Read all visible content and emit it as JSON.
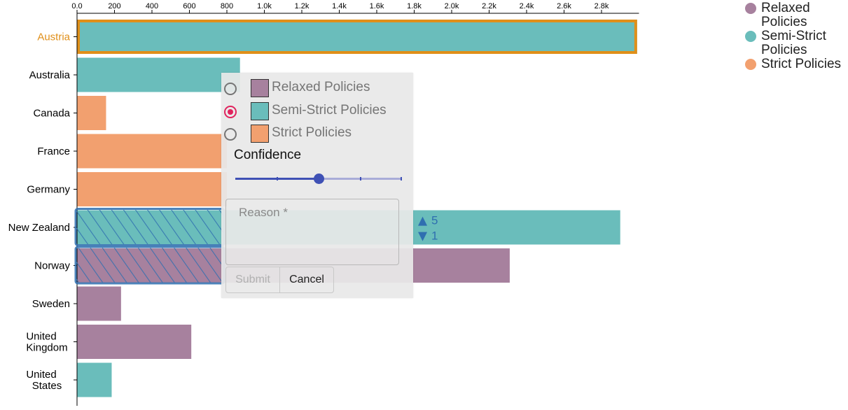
{
  "chart_data": {
    "type": "bar",
    "orientation": "horizontal",
    "categories": [
      "Austria",
      "Australia",
      "Canada",
      "France",
      "Germany",
      "New Zealand",
      "Norway",
      "Sweden",
      "United Kingdom",
      "United States"
    ],
    "values": [
      2990,
      870,
      155,
      800,
      800,
      2900,
      2310,
      235,
      610,
      185
    ],
    "classes": [
      "Semi-Strict Policies",
      "Semi-Strict Policies",
      "Strict Policies",
      "Strict Policies",
      "Strict Policies",
      "Semi-Strict Policies",
      "Relaxed Policies",
      "Relaxed Policies",
      "Relaxed Policies",
      "Semi-Strict Policies"
    ],
    "x_ticks": [
      "0.0",
      "200",
      "400",
      "600",
      "800",
      "1.0k",
      "1.2k",
      "1.4k",
      "1.6k",
      "1.8k",
      "2.0k",
      "2.2k",
      "2.4k",
      "2.6k",
      "2.8k"
    ],
    "xlim": [
      0,
      3000
    ],
    "highlighted_category": "Austria",
    "annotated_categories": [
      "New Zealand",
      "Norway"
    ],
    "votes": {
      "up": "5",
      "down": "1"
    },
    "legend": [
      {
        "name": "Relaxed Policies",
        "color": "#a7819e"
      },
      {
        "name": "Semi-Strict Policies",
        "color": "#6abdbb"
      },
      {
        "name": "Strict Policies",
        "color": "#f2a06f"
      }
    ],
    "legend_placement": "top-right",
    "grid": false
  },
  "colors": {
    "highlight": "#e08f19",
    "annotation": "#2f6fb0",
    "accent_radio": "#e0245e",
    "slider": "#3f51b5"
  },
  "popup": {
    "options": [
      {
        "label": "Relaxed Policies",
        "color": "#a7819e",
        "selected": false
      },
      {
        "label": "Semi-Strict Policies",
        "color": "#6abdbb",
        "selected": true
      },
      {
        "label": "Strict Policies",
        "color": "#f2a06f",
        "selected": false
      }
    ],
    "confidence_label": "Confidence",
    "confidence_value": 0.5,
    "reason_label": "Reason *",
    "submit_label": "Submit",
    "cancel_label": "Cancel"
  },
  "icons": {
    "upvote": "thumbs-up-icon",
    "downvote": "thumbs-down-icon"
  }
}
